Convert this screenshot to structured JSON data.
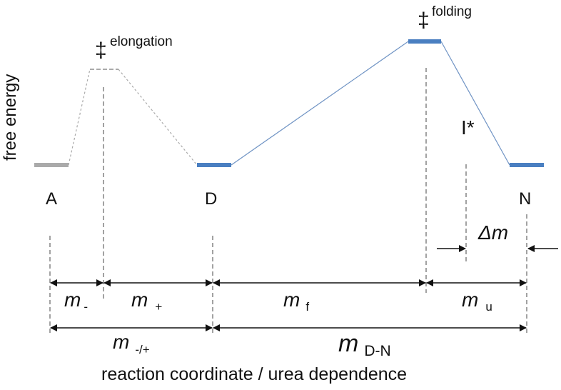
{
  "axis": {
    "y_label": "free energy",
    "x_label": "reaction coordinate / urea dependence"
  },
  "states": {
    "A": "A",
    "D": "D",
    "N": "N"
  },
  "transition_states": {
    "symbol": "‡",
    "elongation": "elongation",
    "folding": "folding"
  },
  "intermediate": "I*",
  "m_values": {
    "italic_m": "m",
    "minus_sub": "-",
    "plus_sub": "+",
    "f_sub": "f",
    "u_sub": "u",
    "minus_plus_sub": "-/+",
    "dn_sub": "D-N",
    "delta_m": "Δm"
  },
  "colors": {
    "blue_level": "#4a7fc1",
    "grey_level": "#aaaaaa",
    "blue_line": "#6f93c4",
    "grey_dotted": "#aaaaaa"
  }
}
